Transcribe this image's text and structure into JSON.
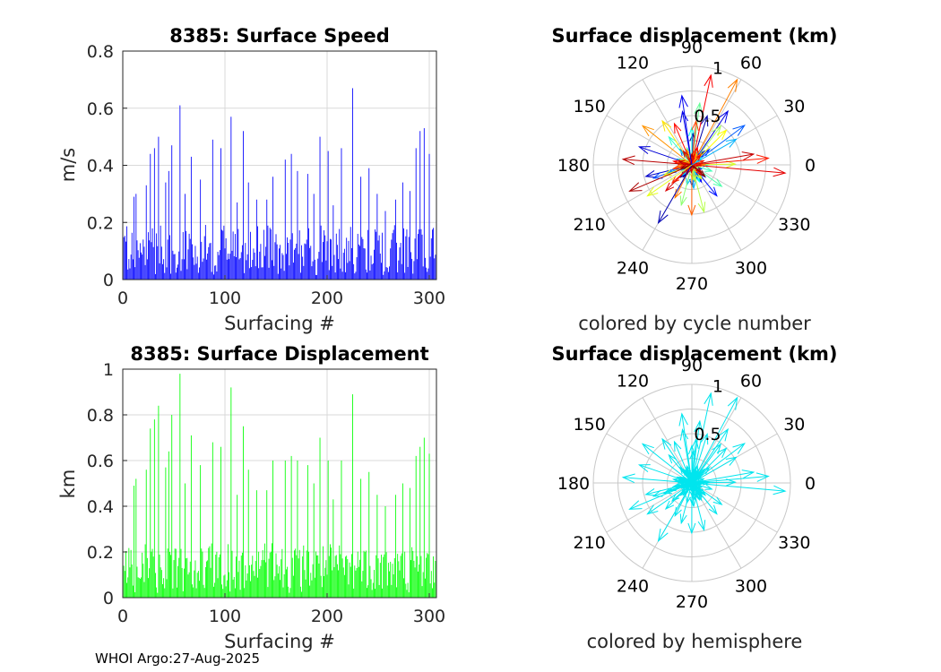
{
  "footer": "WHOI Argo:27-Aug-2025",
  "colors": {
    "speed": "#0000ff",
    "displacement": "#00ff00",
    "hemisphere": "#00e5ee",
    "grid": "#d9d9d9",
    "axis": "#262626"
  },
  "chart_data": [
    {
      "id": "speed",
      "type": "bar",
      "title": "8385: Surface Speed",
      "xlabel": "Surfacing #",
      "ylabel": "m/s",
      "xlim": [
        0,
        307
      ],
      "ylim": [
        0,
        0.8
      ],
      "xticks": [
        "0",
        "100",
        "200",
        "300"
      ],
      "yticks": [
        "0",
        "0.2",
        "0.4",
        "0.6",
        "0.8"
      ],
      "n": 307,
      "peaks": [
        [
          10,
          0.29
        ],
        [
          12,
          0.3
        ],
        [
          22,
          0.33
        ],
        [
          26,
          0.44
        ],
        [
          30,
          0.46
        ],
        [
          34,
          0.5
        ],
        [
          41,
          0.34
        ],
        [
          44,
          0.38
        ],
        [
          47,
          0.47
        ],
        [
          55,
          0.61
        ],
        [
          60,
          0.3
        ],
        [
          66,
          0.43
        ],
        [
          75,
          0.35
        ],
        [
          87,
          0.49
        ],
        [
          95,
          0.46
        ],
        [
          105,
          0.57
        ],
        [
          111,
          0.27
        ],
        [
          117,
          0.52
        ],
        [
          122,
          0.34
        ],
        [
          130,
          0.28
        ],
        [
          140,
          0.28
        ],
        [
          146,
          0.36
        ],
        [
          158,
          0.42
        ],
        [
          164,
          0.44
        ],
        [
          170,
          0.38
        ],
        [
          180,
          0.37
        ],
        [
          186,
          0.3
        ],
        [
          192,
          0.5
        ],
        [
          200,
          0.45
        ],
        [
          205,
          0.26
        ],
        [
          213,
          0.46
        ],
        [
          224,
          0.67
        ],
        [
          232,
          0.36
        ],
        [
          240,
          0.39
        ],
        [
          248,
          0.3
        ],
        [
          256,
          0.24
        ],
        [
          266,
          0.28
        ],
        [
          273,
          0.34
        ],
        [
          280,
          0.31
        ],
        [
          286,
          0.46
        ],
        [
          290,
          0.52
        ],
        [
          294,
          0.53
        ],
        [
          299,
          0.44
        ]
      ],
      "grid": true
    },
    {
      "id": "displacement",
      "type": "bar",
      "title": "8385: Surface Displacement",
      "xlabel": "Surfacing #",
      "ylabel": "km",
      "xlim": [
        0,
        307
      ],
      "ylim": [
        0,
        1
      ],
      "xticks": [
        "0",
        "100",
        "200",
        "300"
      ],
      "yticks": [
        "0",
        "0.2",
        "0.4",
        "0.6",
        "0.8",
        "1"
      ],
      "n": 307,
      "peaks": [
        [
          10,
          0.49
        ],
        [
          12,
          0.52
        ],
        [
          22,
          0.56
        ],
        [
          26,
          0.74
        ],
        [
          30,
          0.78
        ],
        [
          34,
          0.84
        ],
        [
          41,
          0.57
        ],
        [
          44,
          0.64
        ],
        [
          47,
          0.8
        ],
        [
          55,
          0.98
        ],
        [
          60,
          0.5
        ],
        [
          66,
          0.71
        ],
        [
          75,
          0.58
        ],
        [
          87,
          0.68
        ],
        [
          95,
          0.66
        ],
        [
          105,
          0.92
        ],
        [
          111,
          0.45
        ],
        [
          117,
          0.75
        ],
        [
          122,
          0.56
        ],
        [
          130,
          0.47
        ],
        [
          140,
          0.47
        ],
        [
          146,
          0.6
        ],
        [
          158,
          0.6
        ],
        [
          164,
          0.62
        ],
        [
          170,
          0.6
        ],
        [
          180,
          0.58
        ],
        [
          186,
          0.5
        ],
        [
          192,
          0.7
        ],
        [
          200,
          0.6
        ],
        [
          205,
          0.43
        ],
        [
          213,
          0.6
        ],
        [
          224,
          0.89
        ],
        [
          232,
          0.52
        ],
        [
          240,
          0.55
        ],
        [
          248,
          0.45
        ],
        [
          256,
          0.4
        ],
        [
          266,
          0.45
        ],
        [
          273,
          0.5
        ],
        [
          280,
          0.48
        ],
        [
          286,
          0.62
        ],
        [
          290,
          0.66
        ],
        [
          294,
          0.7
        ],
        [
          299,
          0.63
        ]
      ],
      "grid": true
    },
    {
      "id": "polar-cycle",
      "type": "polar-compass",
      "title": "Surface displacement (km)",
      "caption": "colored by cycle number",
      "rlim": [
        0,
        1
      ],
      "rticks": [
        "0.5",
        "1"
      ],
      "angle_labels": [
        "0",
        "30",
        "60",
        "90",
        "120",
        "150",
        "180",
        "210",
        "240",
        "270",
        "300",
        "330"
      ],
      "coloring": "cycle"
    },
    {
      "id": "polar-hemisphere",
      "type": "polar-compass",
      "title": "Surface displacement (km)",
      "caption": "colored by hemisphere",
      "rlim": [
        0,
        1
      ],
      "rticks": [
        "0.5",
        "1"
      ],
      "angle_labels": [
        "0",
        "30",
        "60",
        "90",
        "120",
        "150",
        "180",
        "210",
        "240",
        "270",
        "300",
        "330"
      ],
      "coloring": "hemisphere"
    }
  ]
}
